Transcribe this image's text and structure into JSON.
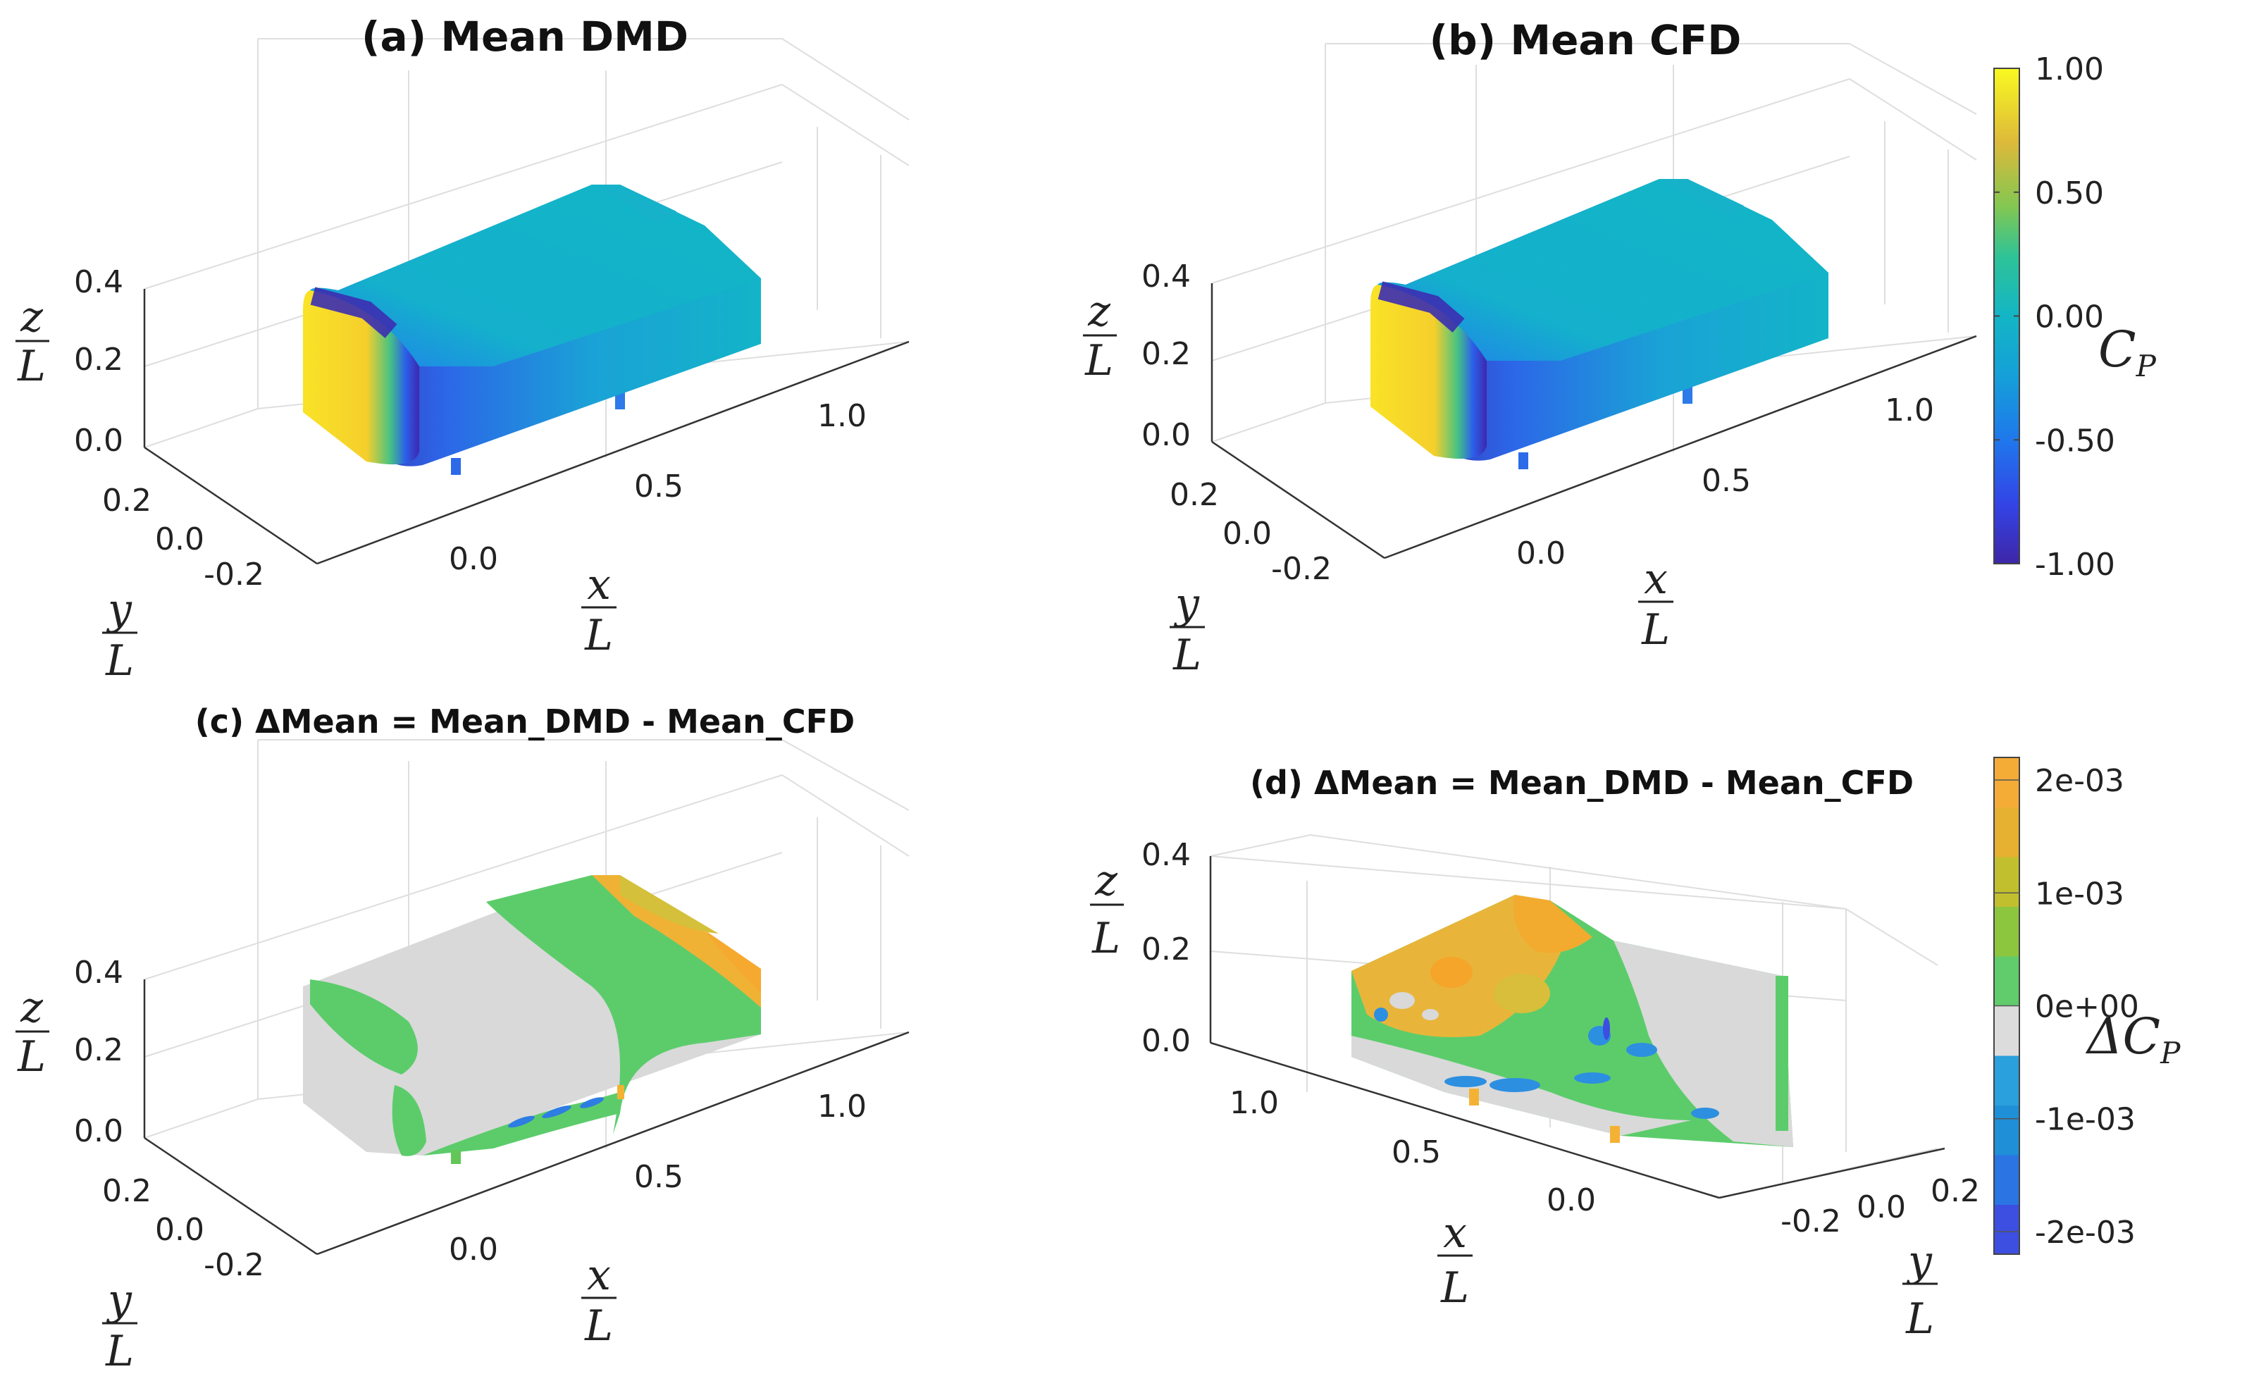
{
  "chart_data": [
    {
      "type": "surface3d",
      "panel": "a",
      "title": "(a) Mean DMD",
      "quantity": "Cp",
      "xlabel": {
        "num": "x",
        "den": "L"
      },
      "ylabel": {
        "num": "y",
        "den": "L"
      },
      "zlabel": {
        "num": "z",
        "den": "L"
      },
      "xticks": [
        "0.0",
        "0.5",
        "1.0"
      ],
      "yticks": [
        "-0.2",
        "0.0",
        "0.2"
      ],
      "zticks": [
        "0.0",
        "0.2",
        "0.4"
      ],
      "clim": [
        -1.0,
        1.0
      ],
      "regions": {
        "front_stagnation": 0.9,
        "front_edge_suction": -0.95,
        "body": -0.05,
        "roof": -0.1,
        "rear": -0.05
      }
    },
    {
      "type": "surface3d",
      "panel": "b",
      "title": "(b) Mean CFD",
      "quantity": "Cp",
      "xlabel": {
        "num": "x",
        "den": "L"
      },
      "ylabel": {
        "num": "y",
        "den": "L"
      },
      "zlabel": {
        "num": "z",
        "den": "L"
      },
      "xticks": [
        "0.0",
        "0.5",
        "1.0"
      ],
      "yticks": [
        "-0.2",
        "0.0",
        "0.2"
      ],
      "zticks": [
        "0.0",
        "0.2",
        "0.4"
      ],
      "clim": [
        -1.0,
        1.0
      ],
      "regions": {
        "front_stagnation": 0.9,
        "front_edge_suction": -0.95,
        "body": -0.05,
        "roof": -0.1,
        "rear": -0.05
      }
    },
    {
      "type": "surface3d",
      "panel": "c",
      "title": "(c) ΔMean = Mean_DMD - Mean_CFD",
      "quantity": "ΔCp",
      "xlabel": {
        "num": "x",
        "den": "L"
      },
      "ylabel": {
        "num": "y",
        "den": "L"
      },
      "zlabel": {
        "num": "z",
        "den": "L"
      },
      "xticks": [
        "0.0",
        "0.5",
        "1.0"
      ],
      "yticks": [
        "-0.2",
        "0.0",
        "0.2"
      ],
      "zticks": [
        "0.0",
        "0.2",
        "0.4"
      ],
      "clim": [
        -0.002,
        0.002
      ]
    },
    {
      "type": "surface3d",
      "panel": "d",
      "title": "(d) ΔMean = Mean_DMD - Mean_CFD",
      "quantity": "ΔCp",
      "xlabel": {
        "num": "x",
        "den": "L"
      },
      "ylabel": {
        "num": "y",
        "den": "L"
      },
      "zlabel": {
        "num": "z",
        "den": "L"
      },
      "xticks": [
        "1.0",
        "0.5",
        "0.0"
      ],
      "yticks": [
        "-0.2",
        "0.0",
        "0.2"
      ],
      "zticks": [
        "0.0",
        "0.2",
        "0.4"
      ],
      "clim": [
        -0.002,
        0.002
      ]
    }
  ],
  "colorbars": {
    "cp": {
      "label_main": "C",
      "label_sub": "P",
      "ticks": [
        "1.00",
        "0.50",
        "0.00",
        "-0.50",
        "-1.00"
      ],
      "tick_values": [
        1.0,
        0.5,
        0.0,
        -0.5,
        -1.0
      ],
      "range": [
        -1.0,
        1.0
      ],
      "colors": [
        "#3e26a8",
        "#2f4ff3",
        "#1a8ee0",
        "#15b0c8",
        "#24bfa0",
        "#6fc761",
        "#c7bf2d",
        "#f5b93a",
        "#f9f921"
      ]
    },
    "dcp": {
      "label_main": "ΔC",
      "label_sub": "P",
      "ticks": [
        "2e-03",
        "1e-03",
        "0e+00",
        "-1e-03",
        "-2e-03"
      ],
      "tick_values": [
        0.002,
        0.001,
        0.0,
        -0.001,
        -0.002
      ],
      "range": [
        -0.0022,
        0.0022
      ],
      "colors": [
        "#3c4fe0",
        "#2a74e3",
        "#1f8fd8",
        "#2aa0dc",
        "#dcdcdc",
        "#61cc6c",
        "#8cc63f",
        "#c2bf2e",
        "#e6b030",
        "#f4ac36"
      ]
    }
  }
}
